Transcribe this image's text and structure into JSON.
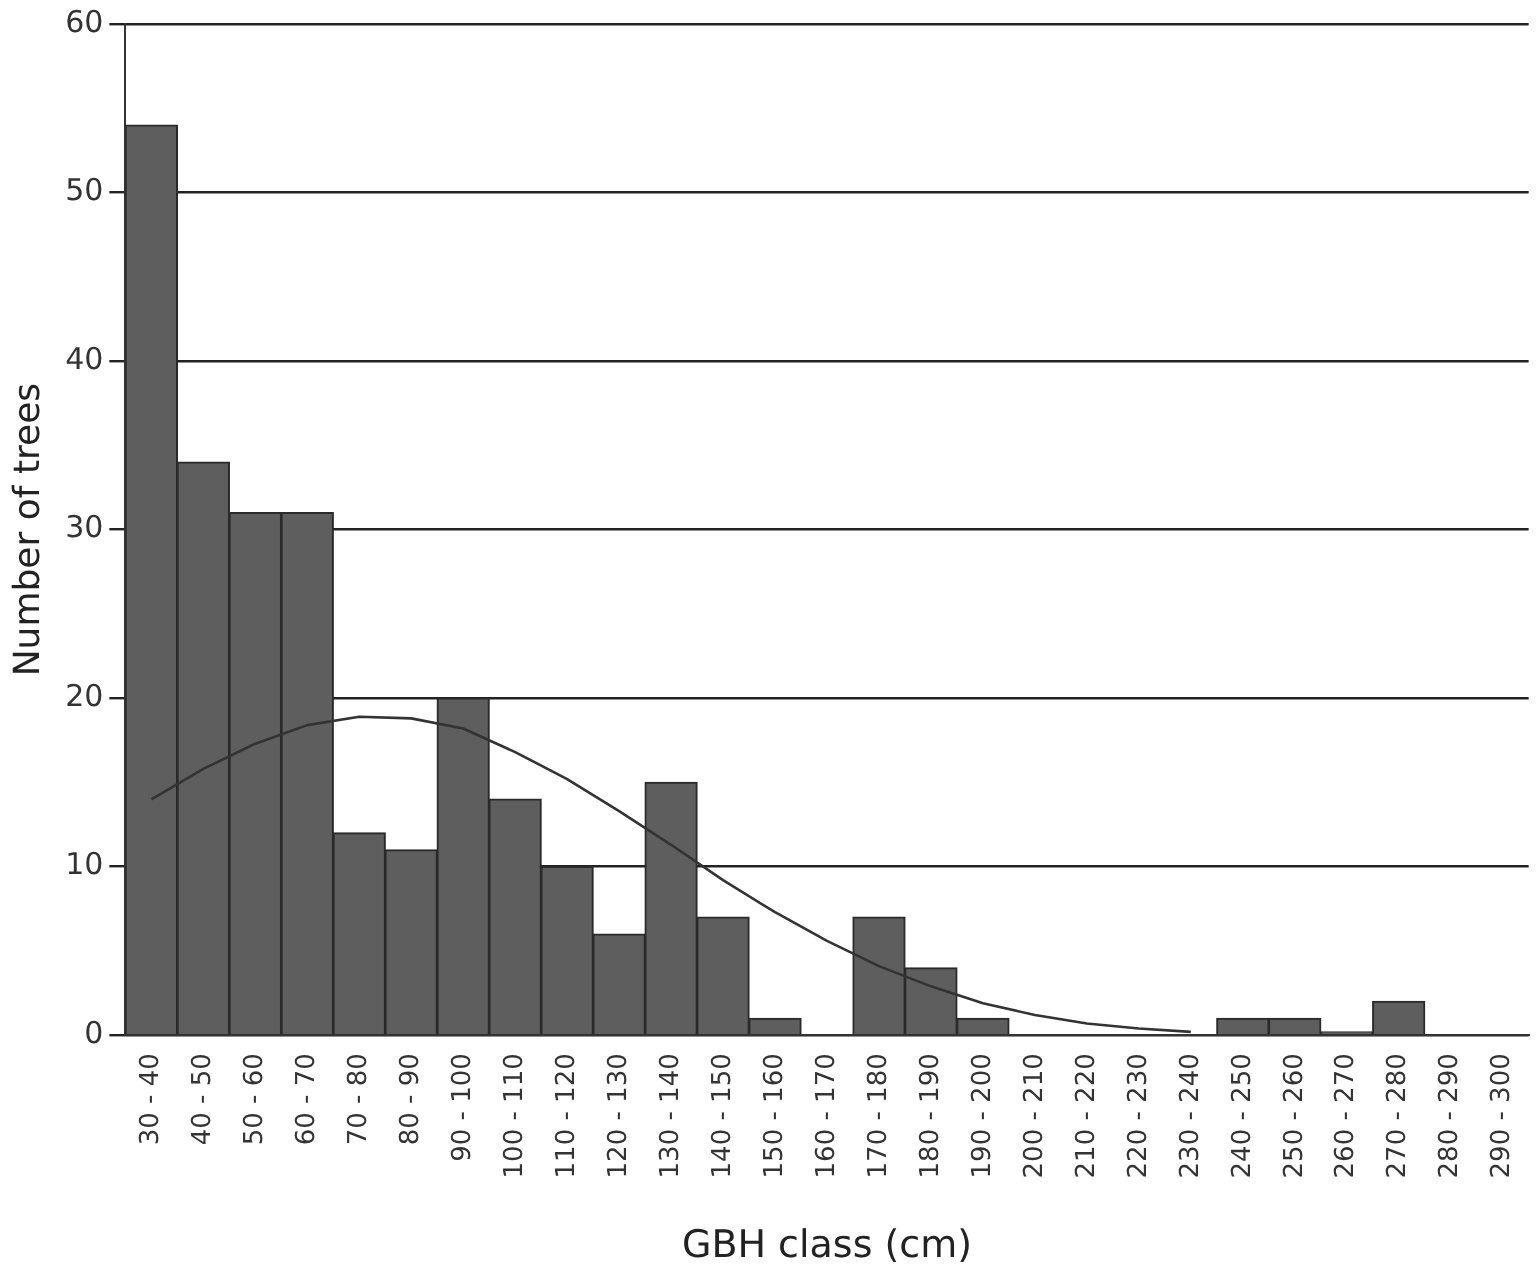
{
  "chart_data": {
    "type": "bar",
    "xlabel": "GBH class (cm)",
    "ylabel": "Number of trees",
    "categories": [
      "30 - 40",
      "40 - 50",
      "50 - 60",
      "60 - 70",
      "70 - 80",
      "80 - 90",
      "90 - 100",
      "100 - 110",
      "110 - 120",
      "120 - 130",
      "130 - 140",
      "140 - 150",
      "150 - 160",
      "160 - 170",
      "170 - 180",
      "180 - 190",
      "190 - 200",
      "200 - 210",
      "210 - 220",
      "220 - 230",
      "230 - 240",
      "240 - 250",
      "250 - 260",
      "260 - 270",
      "270 - 280",
      "280 - 290",
      "290 - 300"
    ],
    "series": [
      {
        "color": "#5e5e5e",
        "values": [
          54,
          34,
          31,
          31,
          12,
          11,
          20,
          14,
          10,
          6,
          15,
          7,
          1,
          0,
          7,
          4,
          1,
          0,
          0,
          0,
          0,
          1,
          1,
          0.2,
          2,
          0,
          0
        ]
      },
      {
        "type": "line",
        "color": "#333333",
        "values": [
          14,
          15.8,
          17.3,
          18.4,
          18.9,
          18.8,
          18.2,
          16.8,
          15.2,
          13.3,
          11.3,
          9.2,
          7.3,
          5.6,
          4.1,
          2.9,
          1.9,
          1.2,
          0.7,
          0.4,
          0.2,
          null,
          null,
          null,
          null,
          null,
          null
        ]
      }
    ],
    "ylim": [
      0,
      60
    ],
    "yticks": [
      0,
      10,
      20,
      30,
      40,
      50,
      60
    ],
    "grid": "y",
    "legend": false,
    "marker": "none",
    "line_style": "solid"
  }
}
